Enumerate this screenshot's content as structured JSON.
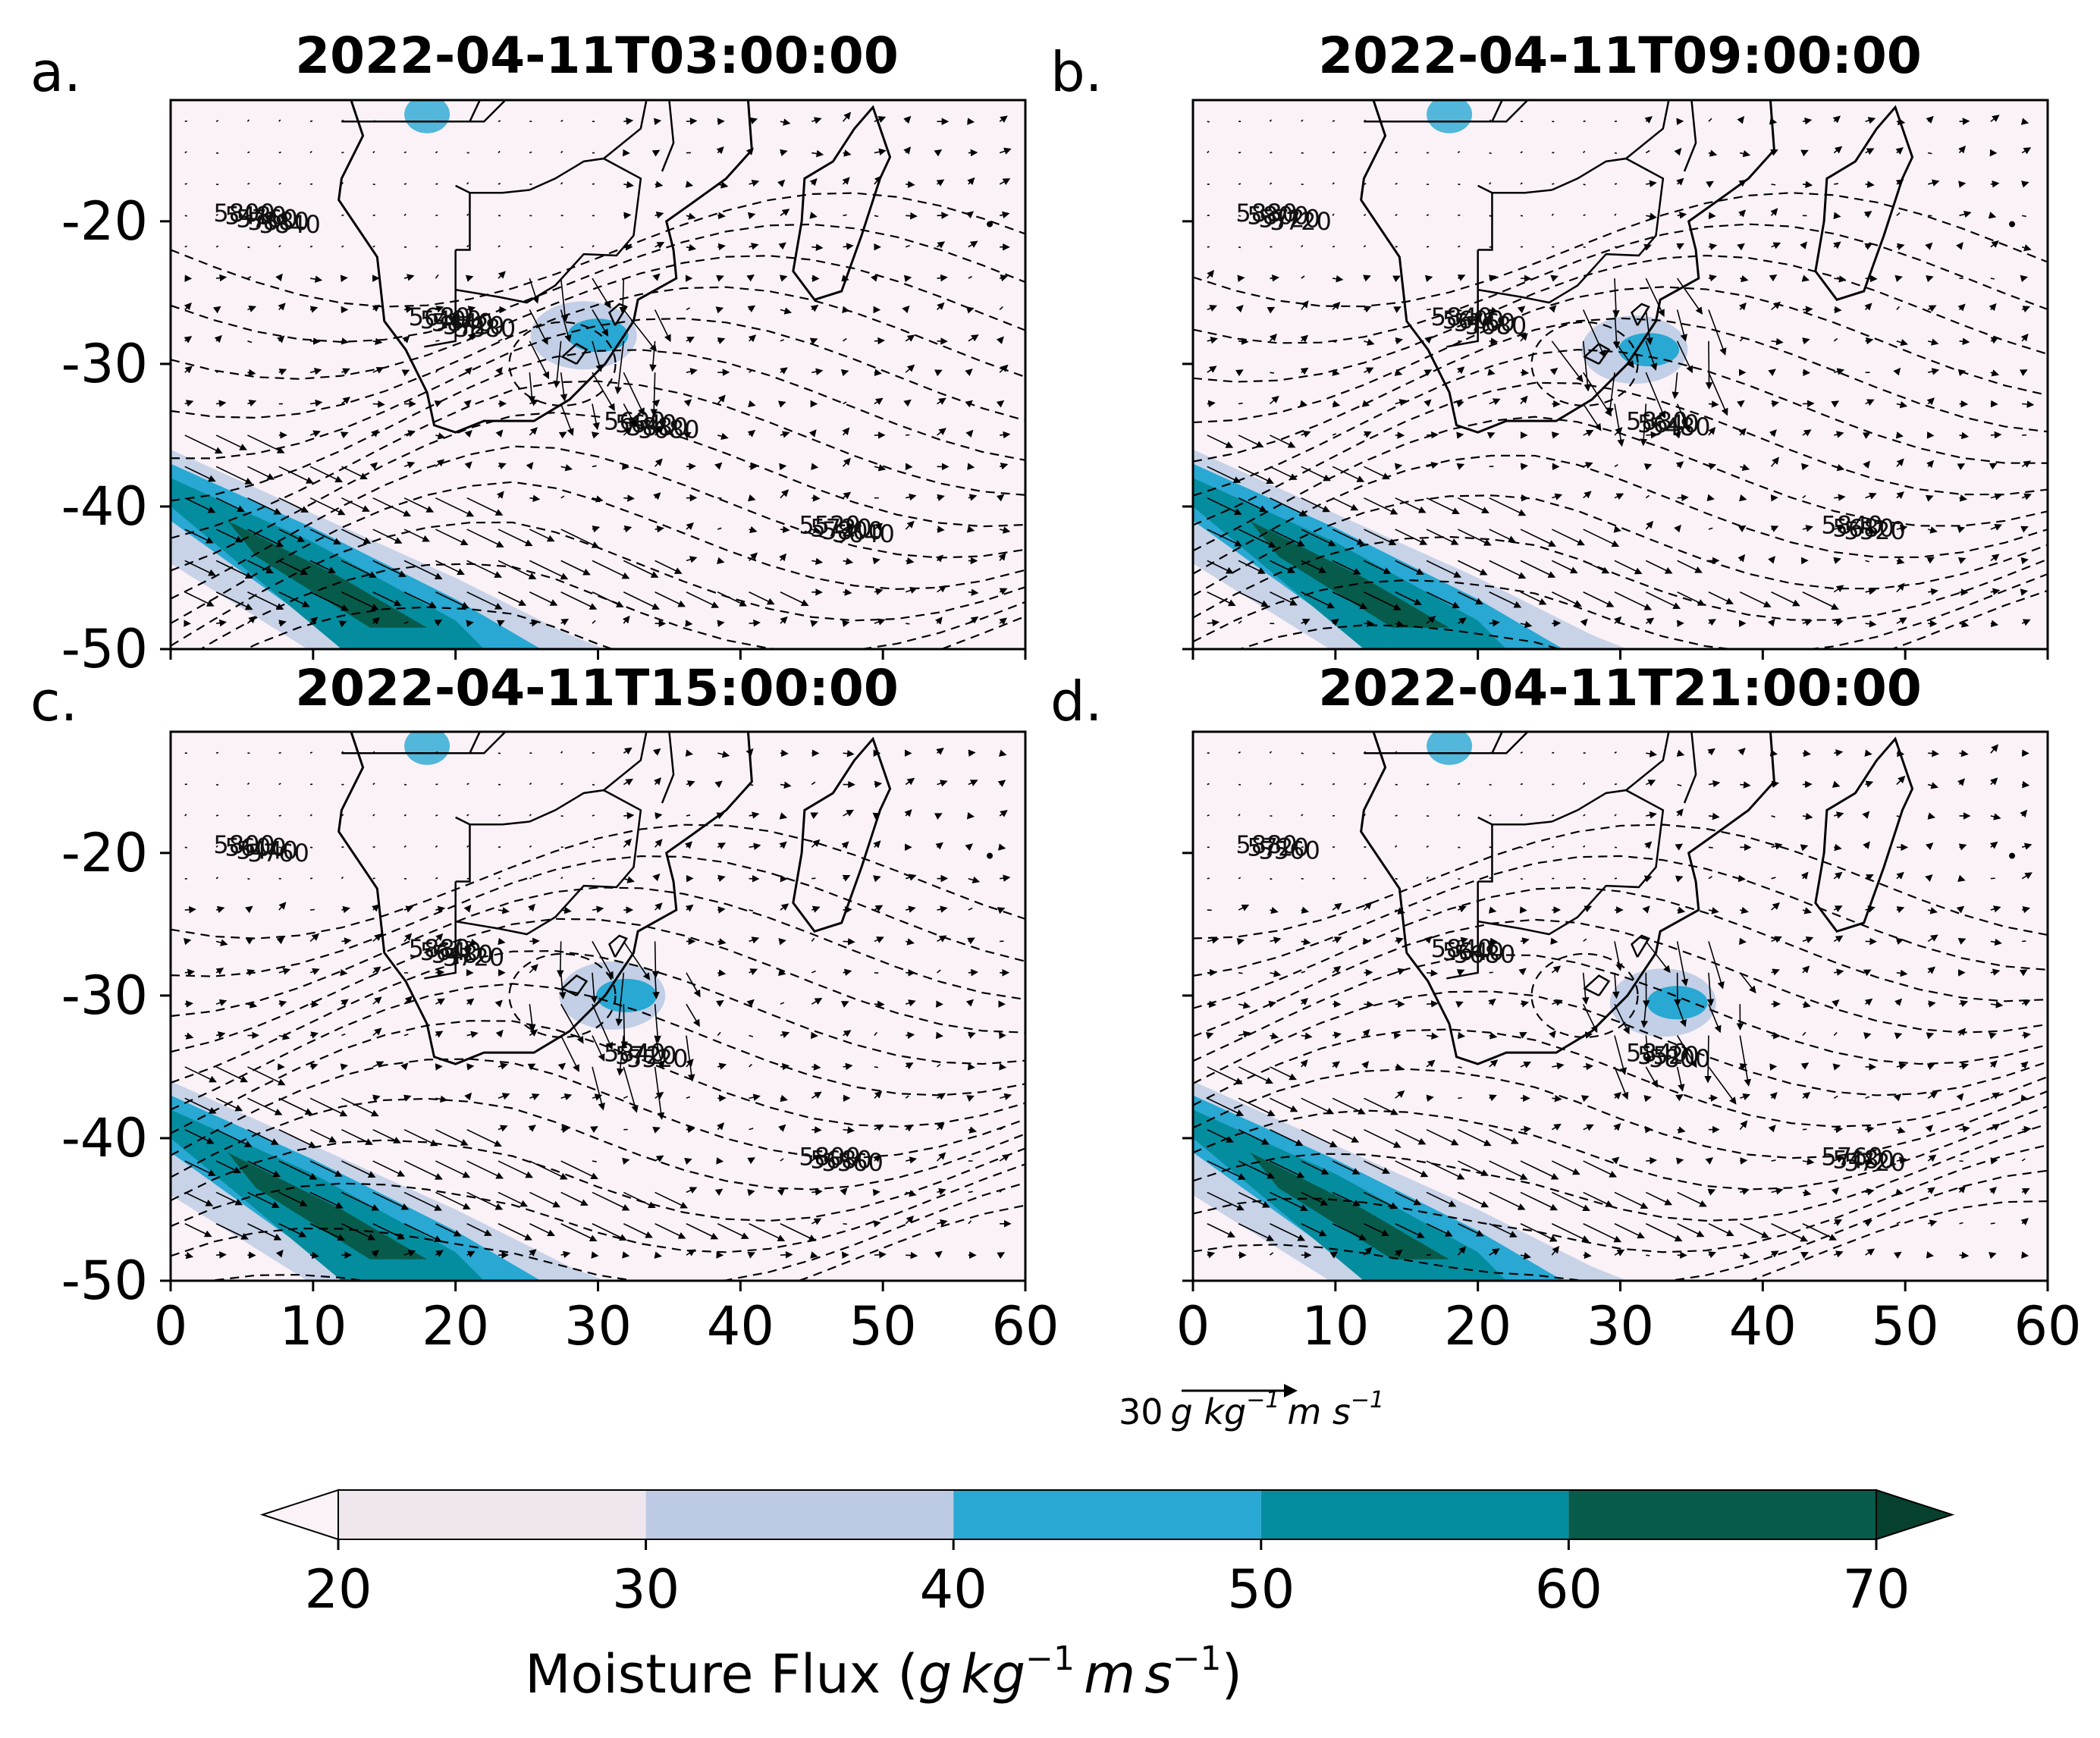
{
  "panels": [
    {
      "letter": "a.",
      "title": "2022-04-11T03:00:00",
      "contour_labels": [
        "5800",
        "5680",
        "5600",
        "5520",
        "5480",
        "5400",
        "5640",
        "5720",
        "5760",
        "5840",
        "5880",
        "5800",
        "5880",
        "5720",
        "5680",
        "5640",
        "5840",
        "5880"
      ]
    },
    {
      "letter": "b.",
      "title": "2022-04-11T09:00:00",
      "contour_labels": [
        "5880",
        "5840",
        "5880",
        "5840",
        "5800",
        "5600",
        "5640",
        "5680",
        "5720",
        "5760",
        "5480",
        "5520",
        "5720",
        "5680"
      ]
    },
    {
      "letter": "c.",
      "title": "2022-04-11T15:00:00",
      "contour_labels": [
        "5800",
        "5880",
        "5840",
        "5800",
        "5600",
        "5640",
        "5720",
        "5680",
        "5440",
        "5480",
        "5520",
        "5560",
        "5760",
        "5720"
      ]
    },
    {
      "letter": "d.",
      "title": "2022-04-11T21:00:00",
      "contour_labels": [
        "5880",
        "5840",
        "5840",
        "5760",
        "5720",
        "5640",
        "5520",
        "5480",
        "5560",
        "5680",
        "5800",
        "5720"
      ]
    }
  ],
  "axes": {
    "x_ticks": [
      "0",
      "10",
      "20",
      "30",
      "40",
      "50",
      "60"
    ],
    "y_ticks": [
      "-20",
      "-30",
      "-40",
      "-50"
    ],
    "xlim": [
      0,
      60
    ],
    "ylim": [
      -50,
      -11.5
    ]
  },
  "quiver_reference": {
    "value": "30",
    "units": "g kg",
    "units_exp": "−1",
    "units2": "m s",
    "units2_exp": "−1"
  },
  "colorbar": {
    "ticks": [
      "20",
      "30",
      "40",
      "50",
      "60",
      "70"
    ],
    "colors": [
      "#fbf2f7",
      "#f0e6ee",
      "#bccbe3",
      "#28a8d2",
      "#048d9f",
      "#075b4a",
      "#06402f"
    ],
    "label_text": "Moisture Flux (",
    "label_g": "g",
    "label_kg": "kg",
    "label_exp1": "−1",
    "label_m": "m",
    "label_s": "s",
    "label_exp2": "−1",
    "label_close": ")",
    "extend": "both"
  },
  "colors": {
    "background_field": "#fbf2f7",
    "flux_low": "#bccbe3",
    "flux_mid": "#28a8d2",
    "flux_high": "#048d9f",
    "flux_max": "#075b4a"
  }
}
